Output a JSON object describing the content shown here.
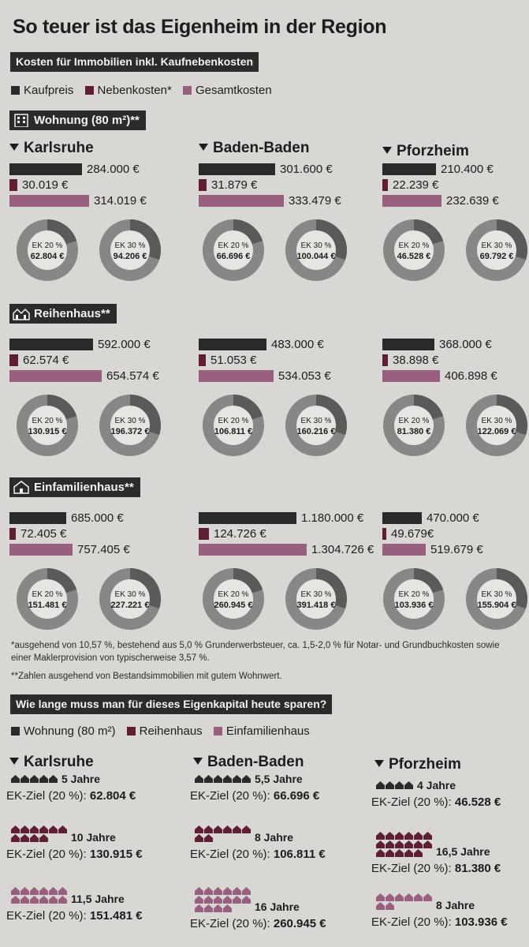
{
  "title": "So teuer ist das Eigenheim in der Region",
  "subtitle": "Kosten für Immobilien inkl. Kaufnebenkosten",
  "colors": {
    "kaufpreis": "#2a2a2c",
    "nebenkosten": "#5e1f33",
    "gesamtkosten": "#98607e",
    "donut_track": "#878787",
    "donut_seg": "#5a5a5a",
    "band": "#2b2b2d"
  },
  "legend": [
    "Kaufpreis",
    "Nebenkosten*",
    "Gesamtkosten"
  ],
  "cities": [
    "Karlsruhe",
    "Baden-Baden",
    "Pforzheim"
  ],
  "chart_data": {
    "type": "bar",
    "series_names": [
      "Kaufpreis",
      "Nebenkosten*",
      "Gesamtkosten"
    ],
    "groups": [
      {
        "name": "Wohnung (80 m²)**",
        "icon": "apartment-building-icon",
        "cities": [
          {
            "city": "Karlsruhe",
            "values": [
              284000,
              30019,
              314019
            ],
            "labels": [
              "284.000 €",
              "30.019 €",
              "314.019 €"
            ],
            "ek20": "62.804 €",
            "ek30": "94.206 €"
          },
          {
            "city": "Baden-Baden",
            "values": [
              301600,
              31879,
              333479
            ],
            "labels": [
              "301.600 €",
              "31.879 €",
              "333.479 €"
            ],
            "ek20": "66.696 €",
            "ek30": "100.044 €"
          },
          {
            "city": "Pforzheim",
            "values": [
              210400,
              22239,
              232639
            ],
            "labels": [
              "210.400 €",
              "22.239 €",
              "232.639 €"
            ],
            "ek20": "46.528 €",
            "ek30": "69.792 €"
          }
        ]
      },
      {
        "name": "Reihenhaus**",
        "icon": "row-house-icon",
        "cities": [
          {
            "city": "Karlsruhe",
            "values": [
              592000,
              62574,
              654574
            ],
            "labels": [
              "592.000 €",
              "62.574 €",
              "654.574 €"
            ],
            "ek20": "130.915 €",
            "ek30": "196.372 €"
          },
          {
            "city": "Baden-Baden",
            "values": [
              483000,
              51053,
              534053
            ],
            "labels": [
              "483.000 €",
              "51.053 €",
              "534.053 €"
            ],
            "ek20": "106.811 €",
            "ek30": "160.216 €"
          },
          {
            "city": "Pforzheim",
            "values": [
              368000,
              38898,
              406898
            ],
            "labels": [
              "368.000 €",
              "38.898 €",
              "406.898 €"
            ],
            "ek20": "81.380 €",
            "ek30": "122.069 €"
          }
        ]
      },
      {
        "name": "Einfamilienhaus**",
        "icon": "detached-house-icon",
        "cities": [
          {
            "city": "Karlsruhe",
            "values": [
              685000,
              72405,
              757405
            ],
            "labels": [
              "685.000 €",
              "72.405 €",
              "757.405 €"
            ],
            "ek20": "151.481 €",
            "ek30": "227.221 €"
          },
          {
            "city": "Baden-Baden",
            "values": [
              1180000,
              124726,
              1304726
            ],
            "labels": [
              "1.180.000 €",
              "124.726 €",
              "1.304.726 €"
            ],
            "ek20": "260.945 €",
            "ek30": "391.418 €"
          },
          {
            "city": "Pforzheim",
            "values": [
              470000,
              49679,
              519679
            ],
            "labels": [
              "470.000 €",
              "49.679€",
              "519.679 €"
            ],
            "ek20": "103.936 €",
            "ek30": "155.904 €"
          }
        ]
      }
    ],
    "ek_labels": {
      "ek20": "EK 20 %",
      "ek30": "EK 30 %"
    },
    "ek_shares": {
      "ek20": 0.2,
      "ek30": 0.3
    }
  },
  "footnotes": {
    "one": "*ausgehend von 10,57 %, bestehend aus 5,0 % Grunderwerbsteuer, ca. 1,5-2,0 % für Notar- und Grundbuchkosten sowie einer Maklerprovision von typischerweise 3,57 %.",
    "two": "**Zahlen ausgehend von Bestandsimmobilien mit gutem Wohnwert."
  },
  "savings": {
    "title": "Wie lange muss man für dieses Eigenkapital heute sparen?",
    "legend": [
      "Wohnung (80 m²)",
      "Reihenhaus",
      "Einfamilienhaus"
    ],
    "goal_label": "EK-Ziel (20 %):",
    "cities": [
      {
        "city": "Karlsruhe",
        "rows": [
          {
            "houses": 5,
            "years": "5 Jahre",
            "goal": "62.804 €"
          },
          {
            "houses": 10,
            "years": "10 Jahre",
            "goal": "130.915 €"
          },
          {
            "houses": 12,
            "years": "11,5 Jahre",
            "goal": "151.481 €"
          }
        ]
      },
      {
        "city": "Baden-Baden",
        "rows": [
          {
            "houses": 6,
            "years": "5,5 Jahre",
            "goal": "66.696 €"
          },
          {
            "houses": 8,
            "years": "8 Jahre",
            "goal": "106.811 €"
          },
          {
            "houses": 16,
            "years": "16 Jahre",
            "goal": "260.945 €"
          }
        ]
      },
      {
        "city": "Pforzheim",
        "rows": [
          {
            "houses": 4,
            "years": "4 Jahre",
            "goal": "46.528 €"
          },
          {
            "houses": 17,
            "years": "16,5 Jahre",
            "goal": "81.380 €"
          },
          {
            "houses": 8,
            "years": "8 Jahre",
            "goal": "103.936 €"
          }
        ]
      }
    ]
  }
}
